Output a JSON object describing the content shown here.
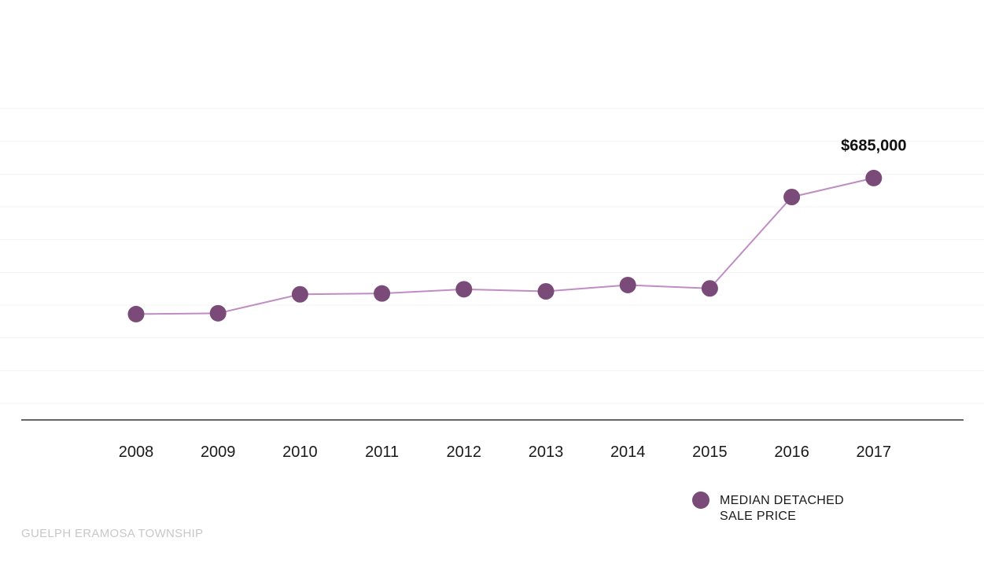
{
  "chart_data": {
    "type": "line",
    "categories": [
      "2008",
      "2009",
      "2010",
      "2011",
      "2012",
      "2013",
      "2014",
      "2015",
      "2016",
      "2017"
    ],
    "series": [
      {
        "name": "MEDIAN DETACHED SALE PRICE",
        "values": [
          362000,
          364000,
          409000,
          411000,
          421000,
          416000,
          431000,
          423000,
          640000,
          685000
        ]
      }
    ],
    "ylim": [
      150000,
      850000
    ],
    "grid": true,
    "annotations": [
      {
        "category": "2017",
        "text": "$685,000"
      }
    ],
    "legend": {
      "position": "bottom-right",
      "label": "MEDIAN DETACHED SALE PRICE"
    },
    "title": "",
    "xlabel": "",
    "ylabel": ""
  },
  "source": "GUELPH ERAMOSA TOWNSHIP",
  "colors": {
    "marker": "#7a4a78",
    "line": "#c08cc4",
    "grid": "#f3f3f3",
    "axis": "#333333",
    "source_text": "#c8c8c8"
  }
}
